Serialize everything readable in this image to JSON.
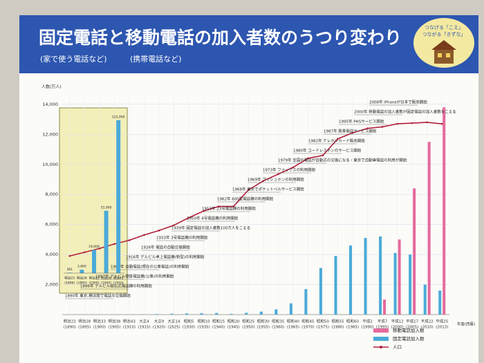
{
  "header": {
    "badge": [
      "つなげる「こえ」",
      "つながる「きずな」"
    ]
  },
  "chart_data": [
    {
      "type": "bar_line",
      "title": "固定電話と移動電話の加入者数のうつり変わり",
      "subtitles": [
        "(家で使う電話など)",
        "(携帯電話など)"
      ],
      "ylabel": "人数(万人)",
      "xlabel": "年度(西暦)",
      "categories": [
        "明治23",
        "明治28",
        "明治33",
        "明治38",
        "明治43",
        "大正4",
        "大正9",
        "大正14",
        "昭和5",
        "昭和10",
        "昭和15",
        "昭和20",
        "昭和25",
        "昭和30",
        "昭和35",
        "昭和40",
        "昭和45",
        "昭和50",
        "昭和55",
        "昭和60",
        "平成2",
        "平成7",
        "平成12",
        "平成17",
        "平成22",
        "平成25"
      ],
      "category_years": [
        "(1890)",
        "(1895)",
        "(1900)",
        "(1905)",
        "(1910)",
        "(1915)",
        "(1920)",
        "(1925)",
        "(1930)",
        "(1935)",
        "(1940)",
        "(1945)",
        "(1950)",
        "(1955)",
        "(1960)",
        "(1965)",
        "(1970)",
        "(1975)",
        "(1980)",
        "(1985)",
        "(1990)",
        "(1995)",
        "(2000)",
        "(2005)",
        "(2010)",
        "(2013)"
      ],
      "series": [
        {
          "name": "移動電話加入数",
          "color": "#e46a9c",
          "kind": "bar",
          "values": [
            0,
            0,
            0,
            0,
            0,
            0,
            0,
            0,
            0,
            0,
            0,
            0,
            0,
            0,
            0,
            0,
            0,
            0,
            0,
            0,
            0,
            1000,
            5000,
            8400,
            11500,
            13800
          ]
        },
        {
          "name": "固定電話加入数",
          "color": "#4aaad8",
          "kind": "bar",
          "values": [
            0,
            0,
            2,
            5,
            12,
            20,
            35,
            55,
            80,
            90,
            110,
            50,
            120,
            200,
            350,
            750,
            1700,
            3100,
            3900,
            4600,
            5100,
            5200,
            4100,
            4000,
            2000,
            1600
          ]
        },
        {
          "name": "人口",
          "color": "#b0203a",
          "kind": "line",
          "values": [
            3900,
            4150,
            4400,
            4700,
            4950,
            5300,
            5600,
            5950,
            6450,
            6900,
            7200,
            7200,
            8300,
            8900,
            9350,
            9800,
            10400,
            10600,
            11700,
            12100,
            12400,
            12500,
            12700,
            12750,
            12800,
            12700
          ]
        }
      ],
      "ylim": [
        0,
        14500
      ],
      "yticks": [
        {
          "value": 2000,
          "label": "2,000"
        },
        {
          "value": 4000,
          "label": "4,000"
        },
        {
          "value": 6000,
          "label": "6,000"
        },
        {
          "value": 8000,
          "label": "8,000"
        },
        {
          "value": 10000,
          "label": "10,000"
        },
        {
          "value": 12000,
          "label": "12,000"
        },
        {
          "value": 14000,
          "label": "14,000"
        }
      ],
      "grid": true,
      "annotations": [
        "1890年 東京-横浜間で電話の交換開始",
        "1896年 デルビル磁石式電話機の利用開始",
        "1897年 デルビル壁掛電話機(公衆)の利用開始",
        "1900年 自動電話(現在の公衆電話)の利用開始",
        "1916年 デルビル卓上電話機(新型)の利用開始",
        "1926年 電話の自動交換開始",
        "1933年 3号電話機の利用開始",
        "1939年 固定電話の加入者数100万人をこえる",
        "1950年 4号電話機の利用開始",
        "1953年 23号電話機の利用開始",
        "1962年 600型電話機の利用開始",
        "1968年 東京でポケットベルサービス開始",
        "1969年 プッシュホンの利用開始",
        "1973年 ファックスの利用開始",
        "1979年 全国の電話が自動式の交換になる・東京で自動車電話の利用が開始",
        "1980年 コードレスホンのサービス開始",
        "1982年 テレホンカード販売開始",
        "1987年 携帯電話サービス開始",
        "1995年 PHSサービス開始",
        "2000年 移動電話の加入者数が固定電話の加入者数をこえる",
        "2008年 iPhoneが日本で販売開始"
      ]
    },
    {
      "type": "bar",
      "categories": [
        "明治23",
        "明治28",
        "明治33",
        "明治38",
        "明治43"
      ],
      "category_years": [
        "(1890)",
        "(1895)",
        "(1900)",
        "(1905)",
        "(1910)"
      ],
      "values": [
        361,
        2800,
        19000,
        51000,
        125000
      ],
      "value_labels": [
        "361",
        "2,800",
        "19,000",
        "51,000",
        "125,000"
      ],
      "color": "#4aaad8",
      "ylim": [
        0,
        130000
      ]
    }
  ]
}
